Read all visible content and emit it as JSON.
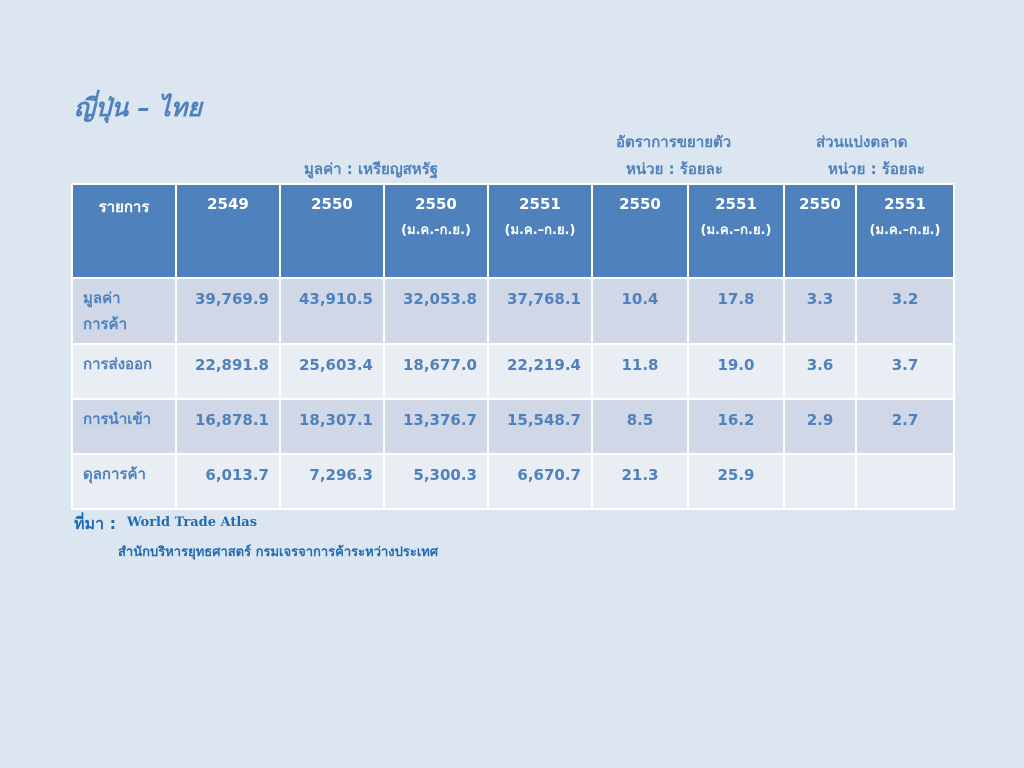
{
  "title": "ญี่ปุ่น – ไทย",
  "headers": {
    "growth_title": "อัตราการขยายตัว",
    "share_title": "ส่วนแบ่งตลาด",
    "value_unit": "มูลค่า : เหรียญสหรัฐ",
    "growth_unit": "หน่วย : ร้อยละ",
    "share_unit": "หน่วย : ร้อยละ"
  },
  "table": {
    "columns": [
      {
        "main": "รายการ",
        "sub": ""
      },
      {
        "main": "2549",
        "sub": ""
      },
      {
        "main": "2550",
        "sub": ""
      },
      {
        "main": "2550",
        "sub": "(ม.ค.-ก.ย.)"
      },
      {
        "main": "2551",
        "sub": "(ม.ค.–ก.ย.)"
      },
      {
        "main": "2550",
        "sub": ""
      },
      {
        "main": "2551",
        "sub": "(ม.ค.–ก.ย.)"
      },
      {
        "main": "2550",
        "sub": ""
      },
      {
        "main": "2551",
        "sub": "(ม.ค.–ก.ย.)"
      }
    ],
    "rows": [
      {
        "label": "มูลค่า การค้า",
        "values": [
          "39,769.9",
          "43,910.5",
          "32,053.8",
          "37,768.1",
          "10.4",
          "17.8",
          "3.3",
          "3.2"
        ]
      },
      {
        "label": "การส่งออก",
        "values": [
          "22,891.8",
          "25,603.4",
          "18,677.0",
          "22,219.4",
          "11.8",
          "19.0",
          "3.6",
          "3.7"
        ]
      },
      {
        "label": "การนำเข้า",
        "values": [
          "16,878.1",
          "18,307.1",
          "13,376.7",
          "15,548.7",
          "8.5",
          "16.2",
          "2.9",
          "2.7"
        ]
      },
      {
        "label": "ดุลการค้า",
        "values": [
          "6,013.7",
          "7,296.3",
          "5,300.3",
          "6,670.7",
          "21.3",
          "25.9",
          "",
          ""
        ]
      }
    ]
  },
  "source": {
    "label": "ที่มา :",
    "value": "World Trade Atlas",
    "line2": "สำนักบริหารยุทธศาสตร์ กรมเจรจาการค้าระหว่างประเทศ"
  },
  "colors": {
    "background": "#dce6f0",
    "header_fill": "#4f81bd",
    "row_dark": "#d0d8e8",
    "row_light": "#e9edf4",
    "text": "#4f81bd"
  }
}
